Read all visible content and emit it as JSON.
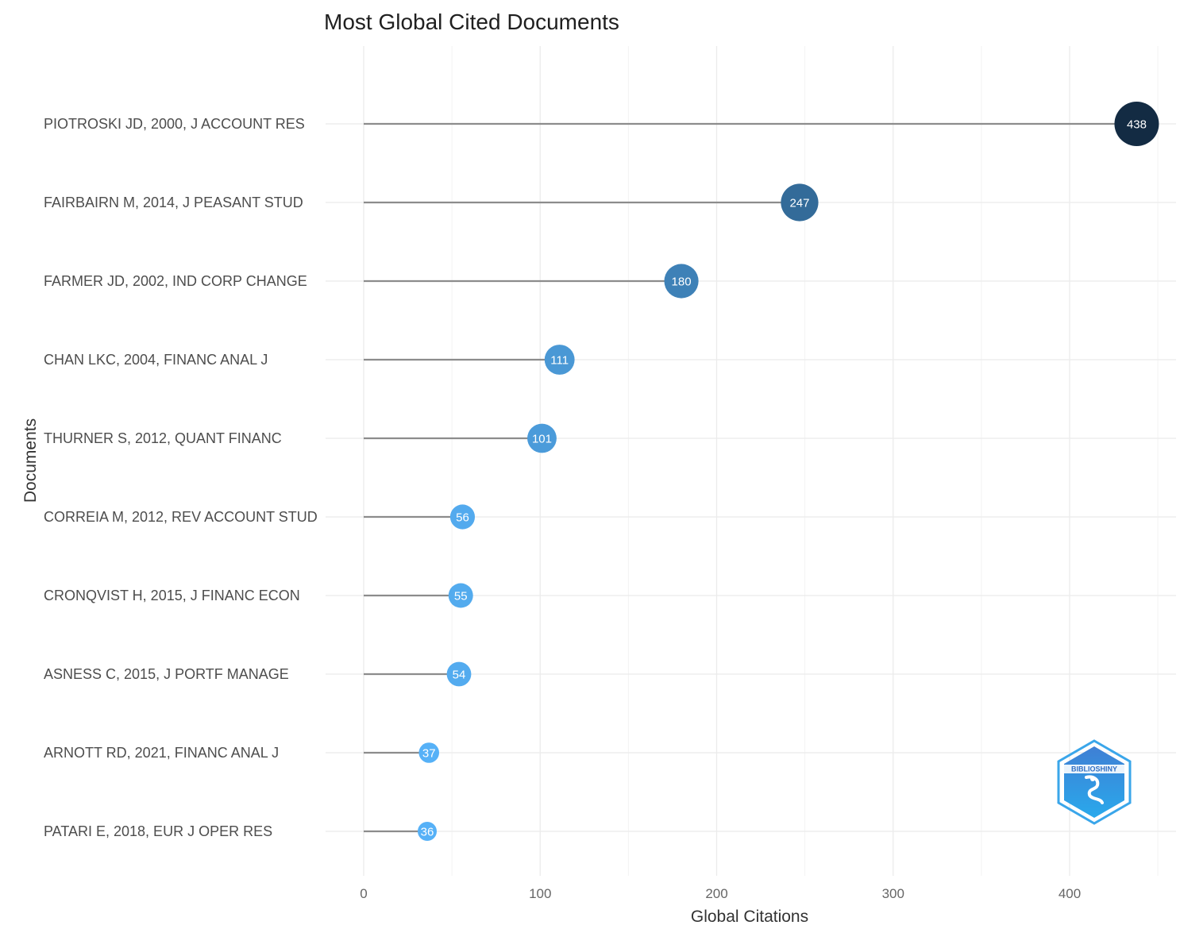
{
  "chart_data": {
    "type": "lollipop",
    "title": "Most Global Cited Documents",
    "xlabel": "Global Citations",
    "ylabel": "Documents",
    "xlim": [
      0,
      460
    ],
    "xticks": [
      0,
      100,
      200,
      300,
      400
    ],
    "grid": true,
    "legend": "none",
    "categories": [
      "PIOTROSKI JD, 2000, J ACCOUNT RES",
      "FAIRBAIRN M, 2014, J PEASANT STUD",
      "FARMER JD, 2002, IND CORP CHANGE",
      "CHAN LKC, 2004, FINANC ANAL J",
      "THURNER S, 2012, QUANT FINANC",
      "CORREIA M, 2012, REV ACCOUNT STUD",
      "CRONQVIST H, 2015, J FINANC ECON",
      "ASNESS C, 2015, J PORTF MANAGE",
      "ARNOTT RD, 2021, FINANC ANAL J",
      "PATARI E, 2018, EUR J OPER RES"
    ],
    "values": [
      438,
      247,
      180,
      111,
      101,
      56,
      55,
      54,
      37,
      36
    ],
    "colors": {
      "low": "#56b1f7",
      "high": "#132b43",
      "stem": "#8c8c8c",
      "label": "#ffffff"
    }
  },
  "logo": {
    "icon": "biblioshiny-logo-icon",
    "text": "BIBLIOSHINY"
  }
}
